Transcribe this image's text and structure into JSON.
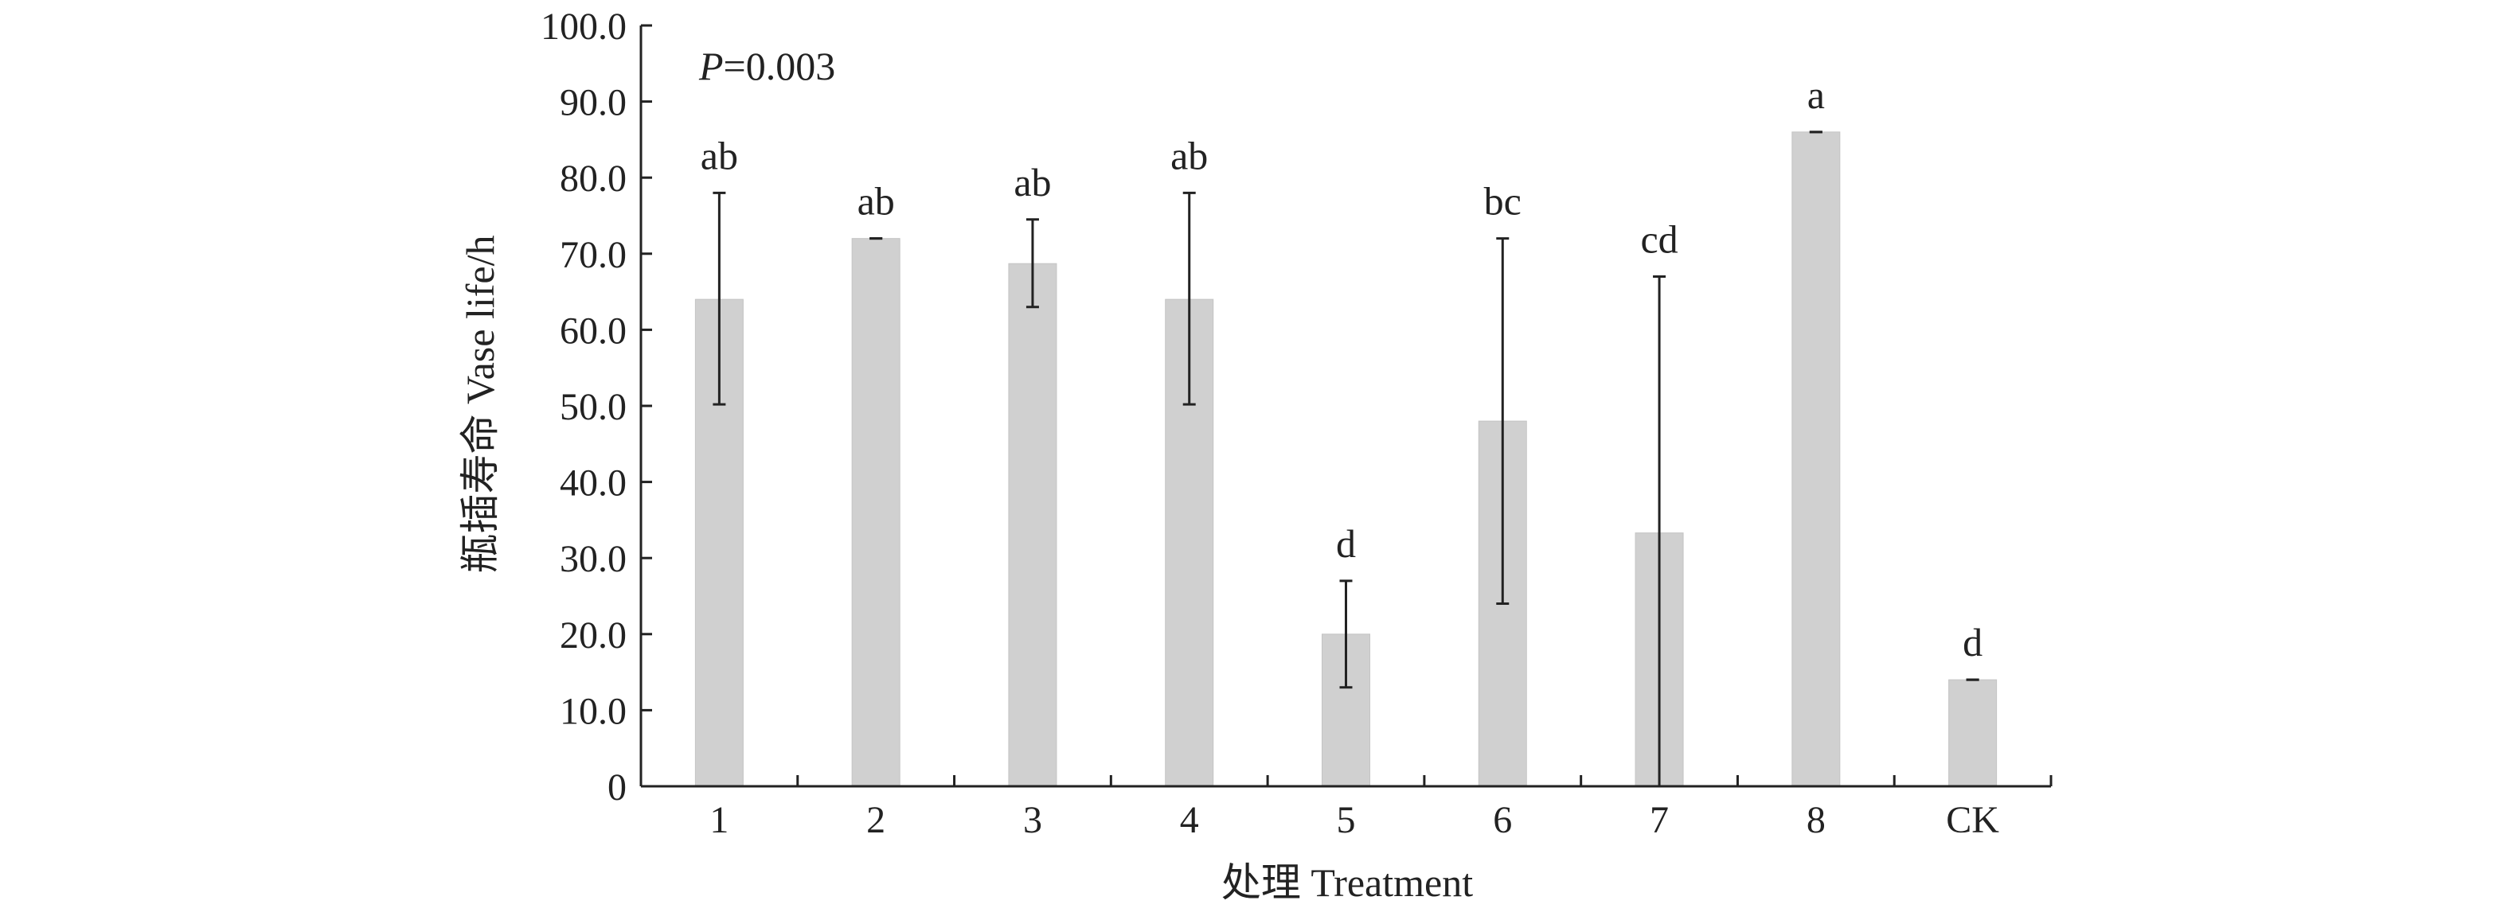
{
  "chart_data": {
    "type": "bar",
    "title": "",
    "annotation_prefix": "P",
    "annotation_value": "=0.003",
    "xlabel": "处理 Treatment",
    "ylabel": "瓶插寿命 Vase life/h",
    "ylim": [
      0,
      100
    ],
    "yticks": [
      "0",
      "10.0",
      "20.0",
      "30.0",
      "40.0",
      "50.0",
      "60.0",
      "70.0",
      "80.0",
      "90.0",
      "100.0"
    ],
    "categories": [
      "1",
      "2",
      "3",
      "4",
      "5",
      "6",
      "7",
      "8",
      "CK"
    ],
    "values": [
      64.0,
      72.0,
      68.7,
      64.0,
      20.0,
      48.0,
      33.3,
      86.0,
      14.0
    ],
    "error_low": [
      50.2,
      72.0,
      63.0,
      50.2,
      13.0,
      24.0,
      0.0,
      86.0,
      14.0
    ],
    "error_high": [
      78.0,
      72.0,
      74.5,
      78.0,
      27.0,
      72.0,
      67.0,
      86.0,
      14.0
    ],
    "significance": [
      "ab",
      "ab",
      "ab",
      "ab",
      "d",
      "bc",
      "cd",
      "a",
      "d"
    ],
    "bar_color": "#d0d0d0",
    "grid": false,
    "legend": "none"
  }
}
